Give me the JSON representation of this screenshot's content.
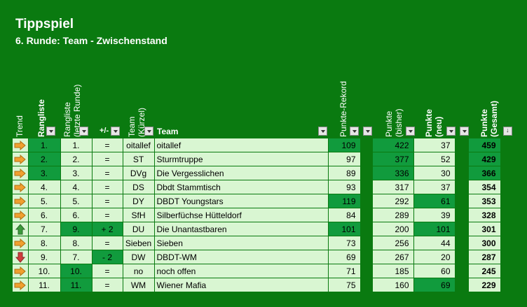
{
  "title": "Tippspiel",
  "subtitle": "6. Runde:  Team - Zwischenstand",
  "headers": {
    "trend": "Trend",
    "rangliste": "Rangliste",
    "rangliste_letzte": "Rangliste\n(letzte Runde)",
    "plusminus": "+/-",
    "team_kuerzel": "Team\n(Kürzel)",
    "team": "Team",
    "punkte_rekord": "Punkte-Rekord",
    "punkte_bisher": "Punkte\n(bisher)",
    "punkte_neu": "Punkte\n(neu)",
    "punkte_gesamt": "Punkte\n(Gesamt)"
  },
  "colors": {
    "background": "#0a7a10",
    "light_cell": "#d9f6d2",
    "highlight_cell": "#119b3d",
    "arrow_same": "#f0a030",
    "arrow_up": "#3c9a3c",
    "arrow_down": "#d23c3c"
  },
  "rows": [
    {
      "trend": "right",
      "rank": "1.",
      "last": "1.",
      "pm": "=",
      "kurz": "oitallef",
      "team": "oitallef",
      "rekord": "109",
      "bisher": "422",
      "neu": "37",
      "gesamt": "459",
      "hl": {
        "rank": true,
        "rekord": true,
        "bisher": true,
        "gesamt": true
      }
    },
    {
      "trend": "right",
      "rank": "2.",
      "last": "2.",
      "pm": "=",
      "kurz": "ST",
      "team": "Sturmtruppe",
      "rekord": "97",
      "bisher": "377",
      "neu": "52",
      "gesamt": "429",
      "hl": {
        "rank": true,
        "bisher": true,
        "gesamt": true
      }
    },
    {
      "trend": "right",
      "rank": "3.",
      "last": "3.",
      "pm": "=",
      "kurz": "DVg",
      "team": "Die Vergesslichen",
      "rekord": "89",
      "bisher": "336",
      "neu": "30",
      "gesamt": "366",
      "hl": {
        "rank": true,
        "bisher": true,
        "gesamt": true
      }
    },
    {
      "trend": "right",
      "rank": "4.",
      "last": "4.",
      "pm": "=",
      "kurz": "DS",
      "team": "Dbdt Stammtisch",
      "rekord": "93",
      "bisher": "317",
      "neu": "37",
      "gesamt": "354",
      "hl": {}
    },
    {
      "trend": "right",
      "rank": "5.",
      "last": "5.",
      "pm": "=",
      "kurz": "DY",
      "team": "DBDT Youngstars",
      "rekord": "119",
      "bisher": "292",
      "neu": "61",
      "gesamt": "353",
      "hl": {
        "rekord": true,
        "neu": true
      }
    },
    {
      "trend": "right",
      "rank": "6.",
      "last": "6.",
      "pm": "=",
      "kurz": "SfH",
      "team": "Silberfüchse Hütteldorf",
      "rekord": "84",
      "bisher": "289",
      "neu": "39",
      "gesamt": "328",
      "hl": {}
    },
    {
      "trend": "up",
      "rank": "7.",
      "last": "9.",
      "pm": "+ 2",
      "kurz": "DU",
      "team": "Die Unantastbaren",
      "rekord": "101",
      "bisher": "200",
      "neu": "101",
      "gesamt": "301",
      "hl": {
        "last": true,
        "pm": true,
        "rekord": true,
        "neu": true
      }
    },
    {
      "trend": "right",
      "rank": "8.",
      "last": "8.",
      "pm": "=",
      "kurz": "Sieben",
      "team": "Sieben",
      "rekord": "73",
      "bisher": "256",
      "neu": "44",
      "gesamt": "300",
      "hl": {}
    },
    {
      "trend": "down",
      "rank": "9.",
      "last": "7.",
      "pm": "- 2",
      "kurz": "DW",
      "team": "DBDT-WM",
      "rekord": "69",
      "bisher": "267",
      "neu": "20",
      "gesamt": "287",
      "hl": {
        "pm": true
      }
    },
    {
      "trend": "right",
      "rank": "10.",
      "last": "10.",
      "pm": "=",
      "kurz": "no",
      "team": "noch offen",
      "rekord": "71",
      "bisher": "185",
      "neu": "60",
      "gesamt": "245",
      "hl": {
        "last": true
      }
    },
    {
      "trend": "right",
      "rank": "11.",
      "last": "11.",
      "pm": "=",
      "kurz": "WM",
      "team": "Wiener Mafia",
      "rekord": "75",
      "bisher": "160",
      "neu": "69",
      "gesamt": "229",
      "hl": {
        "last": true,
        "neu": true
      }
    }
  ]
}
